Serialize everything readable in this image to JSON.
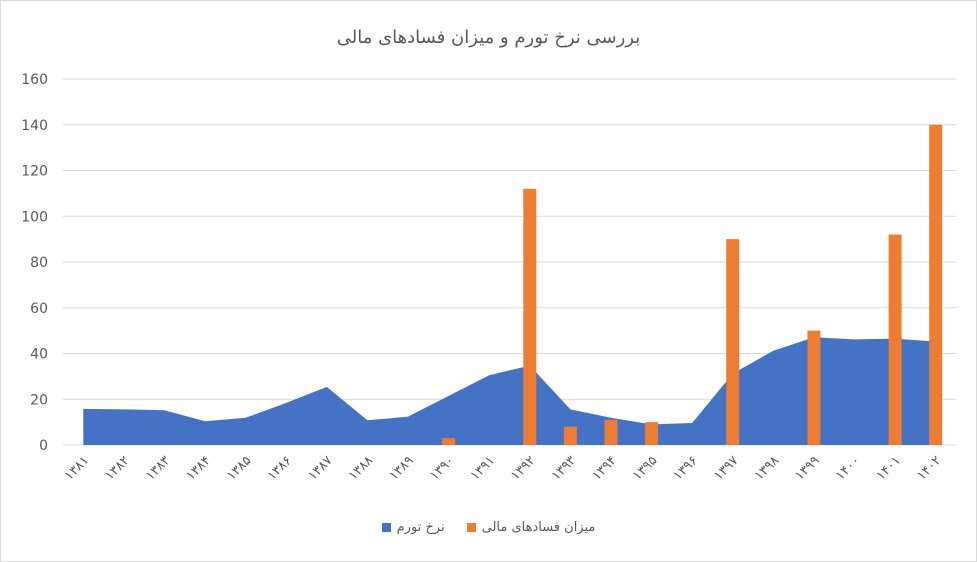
{
  "chart_data": {
    "type": "area",
    "title": "بررسی نرخ تورم و میزان فسادهای مالی",
    "xlabel": "",
    "ylabel": "",
    "categories": [
      "۱۳۸۱",
      "۱۳۸۲",
      "۱۳۸۳",
      "۱۳۸۴",
      "۱۳۸۵",
      "۱۳۸۶",
      "۱۳۸۷",
      "۱۳۸۸",
      "۱۳۸۹",
      "۱۳۹۰",
      "۱۳۹۱",
      "۱۳۹۲",
      "۱۳۹۳",
      "۱۳۹۴",
      "۱۳۹۵",
      "۱۳۹۶",
      "۱۳۹۷",
      "۱۳۹۸",
      "۱۳۹۹",
      "۱۴۰۰",
      "۱۴۰۱",
      "۱۴۰۲"
    ],
    "series": [
      {
        "name": "نرخ تورم",
        "type": "area",
        "color": "#4472C4",
        "values": [
          15.8,
          15.6,
          15.2,
          10.4,
          11.9,
          18.4,
          25.4,
          10.8,
          12.4,
          21.5,
          30.5,
          34.7,
          15.6,
          11.9,
          9.0,
          9.6,
          31.2,
          41.2,
          47.1,
          46.2,
          46.5,
          45.2
        ]
      },
      {
        "name": "میزان فسادهای مالی",
        "type": "bar",
        "color": "#ED7D31",
        "values": [
          null,
          null,
          null,
          null,
          null,
          null,
          null,
          null,
          null,
          3,
          null,
          112,
          8,
          11,
          10,
          null,
          90,
          null,
          50,
          null,
          92,
          140
        ]
      }
    ],
    "ylim": [
      0,
      160
    ],
    "yticks": [
      0,
      20,
      40,
      60,
      80,
      100,
      120,
      140,
      160
    ],
    "grid": "horizontal",
    "legend": "bottom",
    "gridline_color": "#D9D9D9",
    "text_color": "#595959"
  }
}
